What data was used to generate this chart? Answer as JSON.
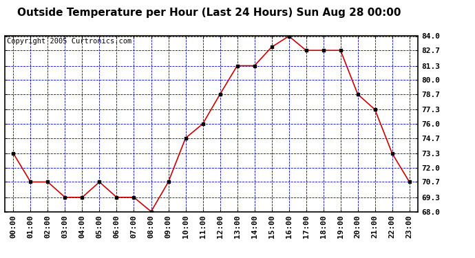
{
  "title": "Outside Temperature per Hour (Last 24 Hours) Sun Aug 28 00:00",
  "copyright": "Copyright 2005 Curtronics.com",
  "hours": [
    "00:00",
    "01:00",
    "02:00",
    "03:00",
    "04:00",
    "05:00",
    "06:00",
    "07:00",
    "08:00",
    "09:00",
    "10:00",
    "11:00",
    "12:00",
    "13:00",
    "14:00",
    "15:00",
    "16:00",
    "17:00",
    "18:00",
    "19:00",
    "20:00",
    "21:00",
    "22:00",
    "23:00"
  ],
  "temperatures": [
    73.3,
    70.7,
    70.7,
    69.3,
    69.3,
    70.7,
    69.3,
    69.3,
    68.0,
    70.7,
    74.7,
    76.0,
    78.7,
    81.3,
    81.3,
    83.0,
    84.0,
    82.7,
    82.7,
    82.7,
    78.7,
    77.3,
    73.3,
    70.7
  ],
  "ylim": [
    68.0,
    84.0
  ],
  "yticks": [
    68.0,
    69.3,
    70.7,
    72.0,
    73.3,
    74.7,
    76.0,
    77.3,
    78.7,
    80.0,
    81.3,
    82.7,
    84.0
  ],
  "line_color": "#cc0000",
  "marker_color": "#000000",
  "fig_bg_color": "#ffffff",
  "plot_bg_color": "#ffffff",
  "grid_color": "#0000bb",
  "border_color": "#000000",
  "title_fontsize": 11,
  "tick_fontsize": 8,
  "copyright_fontsize": 7.5
}
